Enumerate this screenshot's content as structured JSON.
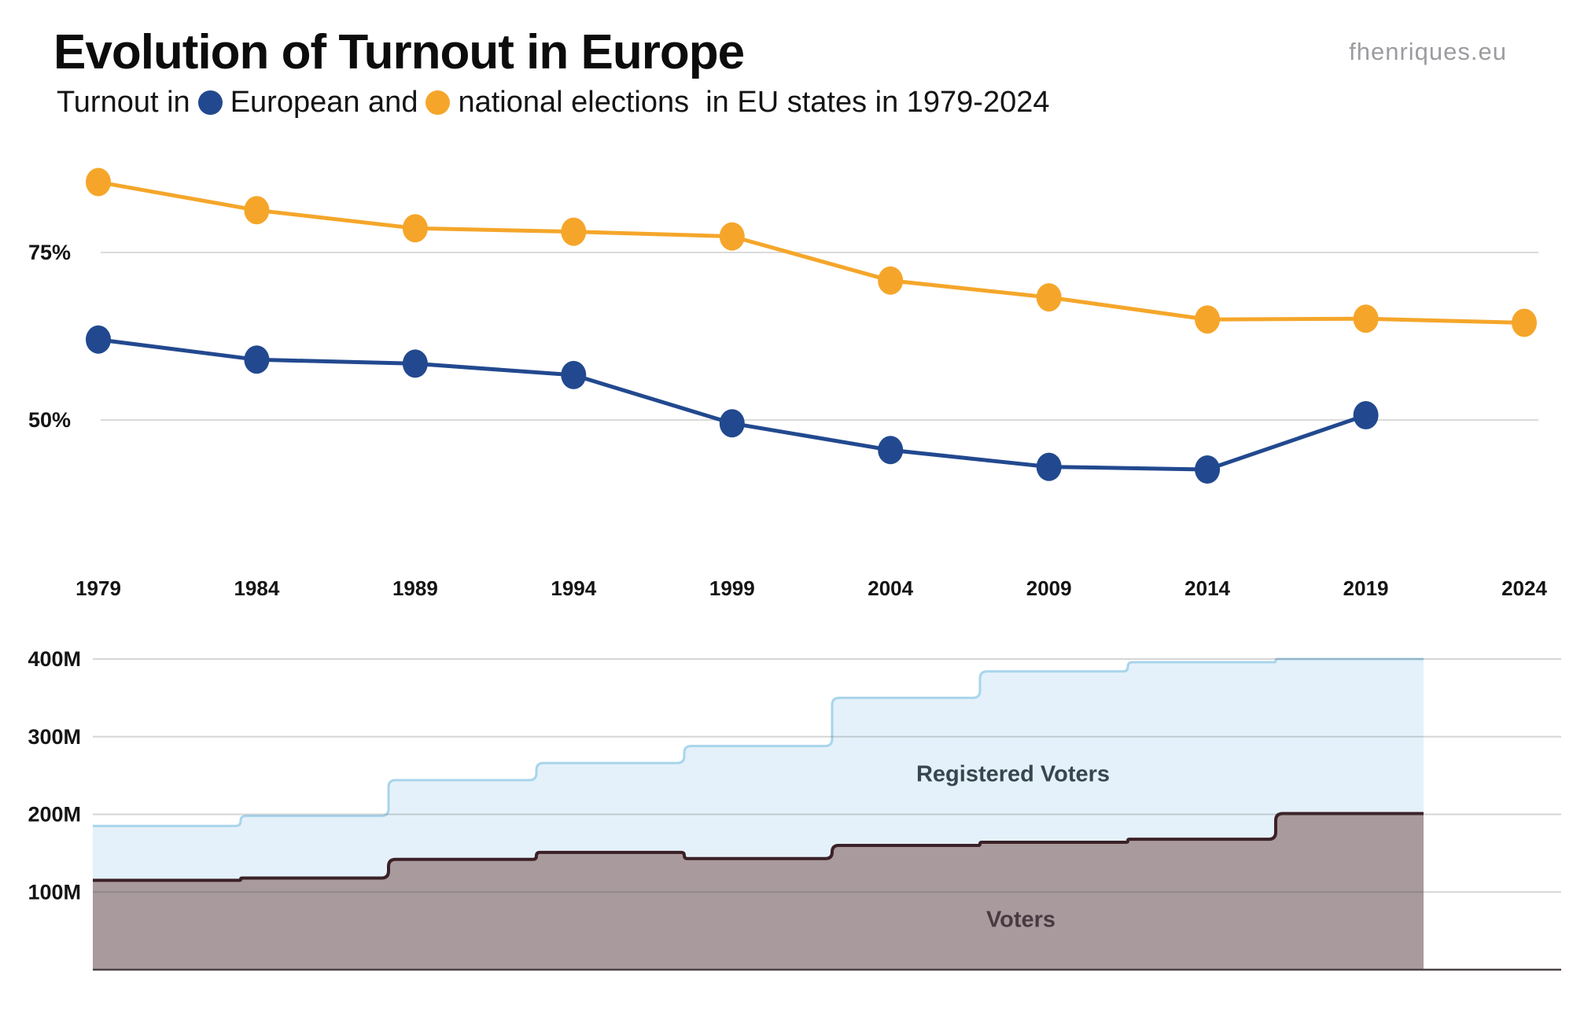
{
  "header": {
    "title": "Evolution of Turnout in Europe",
    "subtitle_prefix": "Turnout in",
    "subtitle_series1": "European and",
    "subtitle_series2": "national elections  in EU states in 1979-2024",
    "watermark": "fhenriques.eu"
  },
  "colors": {
    "european": "#22498f",
    "national": "#f5a62a",
    "registered_fill": "#e4f1fa",
    "registered_edge": "#a8d5eb",
    "voters_fill": "#a89a9d",
    "voters_edge": "#3b2127",
    "grid_top": "#dbdbdb",
    "grid_bottom": "rgba(70,70,70,0.22)",
    "baseline": "#4b4347",
    "axis_text": "#141414"
  },
  "chart_data": [
    {
      "type": "line",
      "title": "Turnout in European and national elections in EU states in 1979-2024",
      "x": [
        1979,
        1984,
        1989,
        1994,
        1999,
        2004,
        2009,
        2014,
        2019,
        2024
      ],
      "series": [
        {
          "name": "European elections turnout (%)",
          "color_key": "european",
          "values": [
            62.0,
            59.0,
            58.4,
            56.7,
            49.5,
            45.5,
            43.0,
            42.6,
            50.7,
            null
          ]
        },
        {
          "name": "National elections turnout (%)",
          "color_key": "national",
          "values": [
            85.5,
            81.3,
            78.6,
            78.1,
            77.4,
            70.8,
            68.3,
            65.0,
            65.1,
            64.5
          ]
        }
      ],
      "yticks": [
        {
          "label": "75%",
          "value": 75
        },
        {
          "label": "50%",
          "value": 50
        }
      ],
      "ylim": [
        38,
        90
      ],
      "grid": true,
      "legend_position": "in-subtitle"
    },
    {
      "type": "area",
      "title": "Registered voters and voters in European elections (millions)",
      "x": [
        1979,
        1984,
        1989,
        1994,
        1999,
        2004,
        2009,
        2014,
        2019
      ],
      "x_end": 2024,
      "series": [
        {
          "name": "Registered Voters",
          "color_key": "registered",
          "values": [
            185,
            198,
            244,
            266,
            288,
            350,
            384,
            396,
            400
          ]
        },
        {
          "name": "Voters",
          "color_key": "voters",
          "values": [
            115,
            118,
            142,
            151,
            143,
            160,
            164,
            168,
            201
          ]
        }
      ],
      "yticks": [
        {
          "label": "400M",
          "value": 400
        },
        {
          "label": "300M",
          "value": 300
        },
        {
          "label": "200M",
          "value": 200
        },
        {
          "label": "100M",
          "value": 100
        }
      ],
      "ylim": [
        0,
        420
      ],
      "grid": true
    }
  ]
}
